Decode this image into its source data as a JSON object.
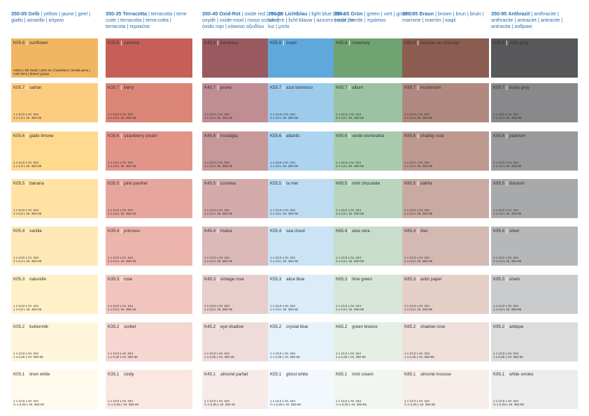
{
  "columns": [
    {
      "header": {
        "code": "350-05",
        "name": "Gelb",
        "rest": " | yellow | jaune | geel | giallo | amarillo | κίτρινο"
      },
      "swatches": [
        {
          "code": "K05.8",
          "name": "sunflower",
          "color": "#f0b662",
          "note": "Vollton | full shade | plein ton | basiskleur | tinalità piena | color lleno | βασικό χρώμα"
        },
        {
          "code": "K05.7",
          "name": "safran",
          "color": "#fccd81",
          "size1": "1 x 10,0 L Nr. 344",
          "size2": "2 x 2,5 L Nr. 350-05"
        },
        {
          "code": "K05.6",
          "name": "giallo limone",
          "color": "#fed98e",
          "size1": "1 x 10,0 L Nr. 344",
          "size2": "1 x 2,5 L Nr. 350-05"
        },
        {
          "code": "K05.5",
          "name": "banana",
          "color": "#ffe2a4",
          "size1": "1 x 10,0 L Nr. 344",
          "size2": "3 x 0,5 L Nr. 350-05"
        },
        {
          "code": "K05.4",
          "name": "vanilla",
          "color": "#fee9b6",
          "size1": "1 x 10,0 L Nr. 344",
          "size2": "2 x 0,5 L Nr. 350-05"
        },
        {
          "code": "K05.3",
          "name": "naturelle",
          "color": "#fff0c7",
          "size1": "1 x 10,0 L Nr. 344",
          "size2": "1 x 0,5 L Nr. 350-05"
        },
        {
          "code": "K05.2",
          "name": "buttermilk",
          "color": "#fff5da",
          "size1": "1 x 10,0 L Nr. 344",
          "size2": "1 x 0,25 L Nr. 350-05"
        },
        {
          "code": "K05.1",
          "name": "linen white",
          "color": "#fffaec",
          "size1": "1 x 10,0 L Nr. 344",
          "size2": "½ x 0,25 L Nr. 350-05"
        }
      ]
    },
    {
      "header": {
        "code": "350-35",
        "name": "Terracotta",
        "rest": " | terracotta | terre cuite | terracotta | terra-cotta | terracota | τερακότα"
      },
      "swatches": [
        {
          "code": "K35.8",
          "name": "carmine",
          "color": "#c55f57"
        },
        {
          "code": "K35.7",
          "name": "berry",
          "color": "#db8576",
          "size1": "1 x 10,0 L Nr. 344",
          "size2": "2 x 2,5 L Nr. 350-35"
        },
        {
          "code": "K35.6",
          "name": "strawberry cream",
          "color": "#e29489",
          "size1": "1 x 10,0 L Nr. 344",
          "size2": "1 x 2,5 L Nr. 350-35"
        },
        {
          "code": "K35.5",
          "name": "pink panther",
          "color": "#e7a69d",
          "size1": "1 x 10,0 L Nr. 344",
          "size2": "3 x 0,5 L Nr. 350-35"
        },
        {
          "code": "K35.4",
          "name": "princess",
          "color": "#edb4ac",
          "size1": "1 x 10,0 L Nr. 344",
          "size2": "2 x 0,5 L Nr. 350-35"
        },
        {
          "code": "K35.3",
          "name": "rose",
          "color": "#f1c5be",
          "size1": "1 x 10,0 L Nr. 344",
          "size2": "1 x 0,5 L Nr. 350-35"
        },
        {
          "code": "K35.2",
          "name": "sorbet",
          "color": "#f6d6d0",
          "size1": "1 x 10,0 L Nr. 344",
          "size2": "1 x 0,25 L Nr. 350-35"
        },
        {
          "code": "K35.1",
          "name": "cindy",
          "color": "#fbe7e2",
          "size1": "1 x 10,0 L Nr. 344",
          "size2": "½ x 0,25 L Nr. 350-35"
        }
      ]
    },
    {
      "header": {
        "code": "350-45",
        "name": "Oxid-Rot",
        "rest": " | oxide red | rouge oxydé | oxide-rood | rosso ossido | óxido rojo | κόκκινο οξειδίου"
      },
      "swatches": [
        {
          "code": "K45.8",
          "name": "bordeaux",
          "color": "#985a5f"
        },
        {
          "code": "K45.7",
          "name": "prune",
          "color": "#c08d95",
          "size1": "1 x 10,0 L Nr. 344",
          "size2": "2 x 2,5 L Nr. 350-45"
        },
        {
          "code": "K45.6",
          "name": "nostalgia",
          "color": "#c69898",
          "size1": "1 x 10,0 L Nr. 344",
          "size2": "1 x 2,5 L Nr. 350-45"
        },
        {
          "code": "K45.5",
          "name": "cosmea",
          "color": "#d3abab",
          "size1": "1 x 10,0 L Nr. 344",
          "size2": "3 x 0,5 L Nr. 350-45"
        },
        {
          "code": "K45.4",
          "name": "malva",
          "color": "#dbb9b9",
          "size1": "1 x 10,0 L Nr. 344",
          "size2": "2 x 0,5 L Nr. 350-45"
        },
        {
          "code": "K45.3",
          "name": "vintage rose",
          "color": "#e7cdcb",
          "size1": "1 x 10,0 L Nr. 344",
          "size2": "1 x 0,5 L Nr. 350-45"
        },
        {
          "code": "K45.2",
          "name": "eye shadow",
          "color": "#efdcda",
          "size1": "1 x 10,0 L Nr. 344",
          "size2": "1 x 0,25 L Nr. 350-45"
        },
        {
          "code": "K45.1",
          "name": "almond parfait",
          "color": "#f6ebe9",
          "size1": "1 x 10,0 L Nr. 344",
          "size2": "½ x 0,25 L Nr. 350-45"
        }
      ]
    },
    {
      "header": {
        "code": "350-55",
        "name": "Lichtblau",
        "rest": " | light blue | bleu lumière | licht-blauw | azzurro | azul de luz | μπλε"
      },
      "swatches": [
        {
          "code": "K55.8",
          "name": "coast",
          "color": "#5ea8dc"
        },
        {
          "code": "K55.7",
          "name": "azul luminoso",
          "color": "#9ccbec",
          "size1": "1 x 10,0 L Nr. 344",
          "size2": "2 x 2,5 L Nr. 350-55"
        },
        {
          "code": "K55.6",
          "name": "atlantic",
          "color": "#acd3ef",
          "size1": "1 x 10,0 L Nr. 344",
          "size2": "1 x 2,5 L Nr. 350-55"
        },
        {
          "code": "K55.5",
          "name": "la mer",
          "color": "#bddcf2",
          "size1": "1 x 10,0 L Nr. 344",
          "size2": "3 x 0,5 L Nr. 350-55"
        },
        {
          "code": "K55.4",
          "name": "sea cloud",
          "color": "#cae4f5",
          "size1": "1 x 10,0 L Nr. 344",
          "size2": "2 x 0,5 L Nr. 350-55"
        },
        {
          "code": "K55.3",
          "name": "alice blue",
          "color": "#d9ecf8",
          "size1": "1 x 10,0 L Nr. 344",
          "size2": "1 x 0,5 L Nr. 350-55"
        },
        {
          "code": "K55.2",
          "name": "crystal blue",
          "color": "#e6f2fa",
          "size1": "1 x 10,0 L Nr. 344",
          "size2": "1 x 0,25 L Nr. 350-55"
        },
        {
          "code": "K55.1",
          "name": "ghost white",
          "color": "#f2f8fd",
          "size1": "1 x 10,0 L Nr. 344",
          "size2": "½ x 0,25 L Nr. 350-55"
        }
      ]
    },
    {
      "header": {
        "code": "350-65",
        "name": "Grün",
        "rest": " | green | vert | groen | verde | verde | πράσινο"
      },
      "swatches": [
        {
          "code": "K65.8",
          "name": "rosemary",
          "color": "#6fa372"
        },
        {
          "code": "K65.7",
          "name": "allium",
          "color": "#9bc3a2",
          "size1": "1 x 10,0 L Nr. 344",
          "size2": "2 x 2,5 L Nr. 350-65"
        },
        {
          "code": "K65.6",
          "name": "verde esmeralda",
          "color": "#a9ccae",
          "size1": "1 x 10,0 L Nr. 344",
          "size2": "1 x 2,5 L Nr. 350-65"
        },
        {
          "code": "K65.5",
          "name": "mint chocolate",
          "color": "#b9d5be",
          "size1": "1 x 10,0 L Nr. 344",
          "size2": "3 x 0,5 L Nr. 350-65"
        },
        {
          "code": "K65.4",
          "name": "aloe vera",
          "color": "#c8ddcb",
          "size1": "1 x 10,0 L Nr. 344",
          "size2": "2 x 0,5 L Nr. 350-65"
        },
        {
          "code": "K65.3",
          "name": "lime green",
          "color": "#d7e6d9",
          "size1": "1 x 10,0 L Nr. 344",
          "size2": "1 x 0,5 L Nr. 350-65"
        },
        {
          "code": "K65.2",
          "name": "green breeze",
          "color": "#e5efe5",
          "size1": "1 x 10,0 L Nr. 344",
          "size2": "1 x 0,25 L Nr. 350-65"
        },
        {
          "code": "K65.1",
          "name": "mint cream",
          "color": "#f1f6f0",
          "size1": "1 x 10,0 L Nr. 344",
          "size2": "½ x 0,25 L Nr. 350-65"
        }
      ]
    },
    {
      "header": {
        "code": "350-85",
        "name": "Braun",
        "rest": " | brown | brun | bruin | marrone | marrón | καφέ"
      },
      "swatches": [
        {
          "code": "K85.8",
          "name": "mousse au chocolat",
          "color": "#8c5c50"
        },
        {
          "code": "K85.7",
          "name": "mushroom",
          "color": "#b08a80",
          "size1": "1 x 10,0 L Nr. 344",
          "size2": "2 x 2,5 L Nr. 350-85"
        },
        {
          "code": "K85.6",
          "name": "shabby rose",
          "color": "#bd9990",
          "size1": "1 x 10,0 L Nr. 344",
          "size2": "1 x 2,5 L Nr. 350-85"
        },
        {
          "code": "K85.5",
          "name": "dahlia",
          "color": "#c8aaa2",
          "size1": "1 x 10,0 L Nr. 344",
          "size2": "3 x 0,5 L Nr. 350-85"
        },
        {
          "code": "K85.4",
          "name": "lilac",
          "color": "#d4b9b2",
          "size1": "1 x 10,0 L Nr. 344",
          "size2": "2 x 0,5 L Nr. 350-85"
        },
        {
          "code": "K85.3",
          "name": "antic paper",
          "color": "#e4cfc7",
          "size1": "1 x 10,0 L Nr. 344",
          "size2": "1 x 0,5 L Nr. 350-85"
        },
        {
          "code": "K85.2",
          "name": "shadow rose",
          "color": "#eedfda",
          "size1": "1 x 10,0 L Nr. 344",
          "size2": "1 x 0,25 L Nr. 350-85"
        },
        {
          "code": "K85.1",
          "name": "almond mousse",
          "color": "#f7eeea",
          "size1": "1 x 10,0 L Nr. 344",
          "size2": "½ x 0,25 L Nr. 350-85"
        }
      ]
    },
    {
      "header": {
        "code": "350-95",
        "name": "Anthrazit",
        "rest": " | anthracite | anthracite | antraciet | antracite | antracita | ανθρακί"
      },
      "swatches": [
        {
          "code": "K95.8",
          "name": "slate grey",
          "color": "#58585a"
        },
        {
          "code": "K95.7",
          "name": "dusty grey",
          "color": "#89898b",
          "size1": "1 x 10,0 L Nr. 344",
          "size2": "2 x 2,5 L Nr. 350-95"
        },
        {
          "code": "K95.6",
          "name": "platinum",
          "color": "#9a9a9c",
          "size1": "1 x 10,0 L Nr. 344",
          "size2": "1 x 2,5 L Nr. 350-95"
        },
        {
          "code": "K95.5",
          "name": "titanium",
          "color": "#a8a9ab",
          "size1": "1 x 10,0 L Nr. 344",
          "size2": "3 x 0,5 L Nr. 350-95"
        },
        {
          "code": "K95.4",
          "name": "silver",
          "color": "#b6b7b9",
          "size1": "1 x 10,0 L Nr. 344",
          "size2": "2 x 0,5 L Nr. 350-95"
        },
        {
          "code": "K95.3",
          "name": "shark",
          "color": "#cacbcc",
          "size1": "1 x 10,0 L Nr. 344",
          "size2": "1 x 0,5 L Nr. 350-95"
        },
        {
          "code": "K95.2",
          "name": "antique",
          "color": "#dcdcdd",
          "size1": "1 x 10,0 L Nr. 344",
          "size2": "1 x 0,25 L Nr. 350-95"
        },
        {
          "code": "K95.1",
          "name": "white smoke",
          "color": "#ececec",
          "size1": "1 x 10,0 L Nr. 344",
          "size2": "½ x 0,25 L Nr. 350-95"
        }
      ]
    }
  ]
}
